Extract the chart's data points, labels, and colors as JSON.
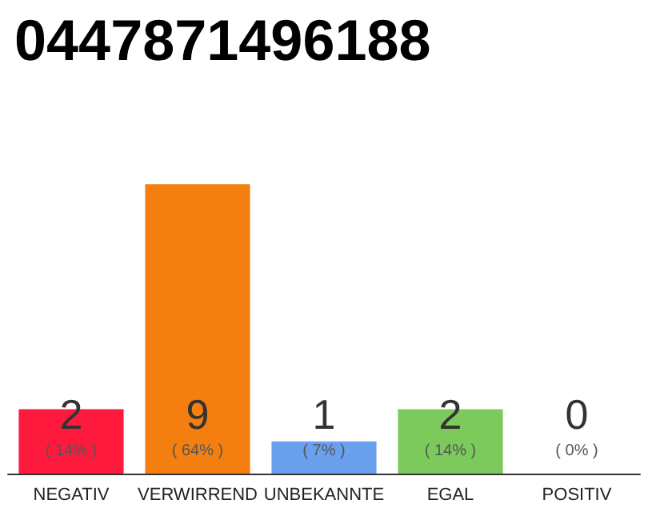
{
  "chart_data": {
    "type": "bar",
    "title": "0447871496188",
    "categories": [
      "NEGATIV",
      "VERWIRREND",
      "UNBEKANNTE",
      "EGAL",
      "POSITIV"
    ],
    "values": [
      2,
      9,
      1,
      2,
      0
    ],
    "colors": [
      "#fe1a3c",
      "#f47f10",
      "#6aa0ee",
      "#7cc95c",
      "#d8d8d8"
    ],
    "value_labels": [
      "2\n( 14% )",
      "9\n( 64% )",
      "1\n( 7% )",
      "2\n( 14% )",
      "0\n( 0% )"
    ],
    "tick_labels": "x",
    "grid": false
  }
}
